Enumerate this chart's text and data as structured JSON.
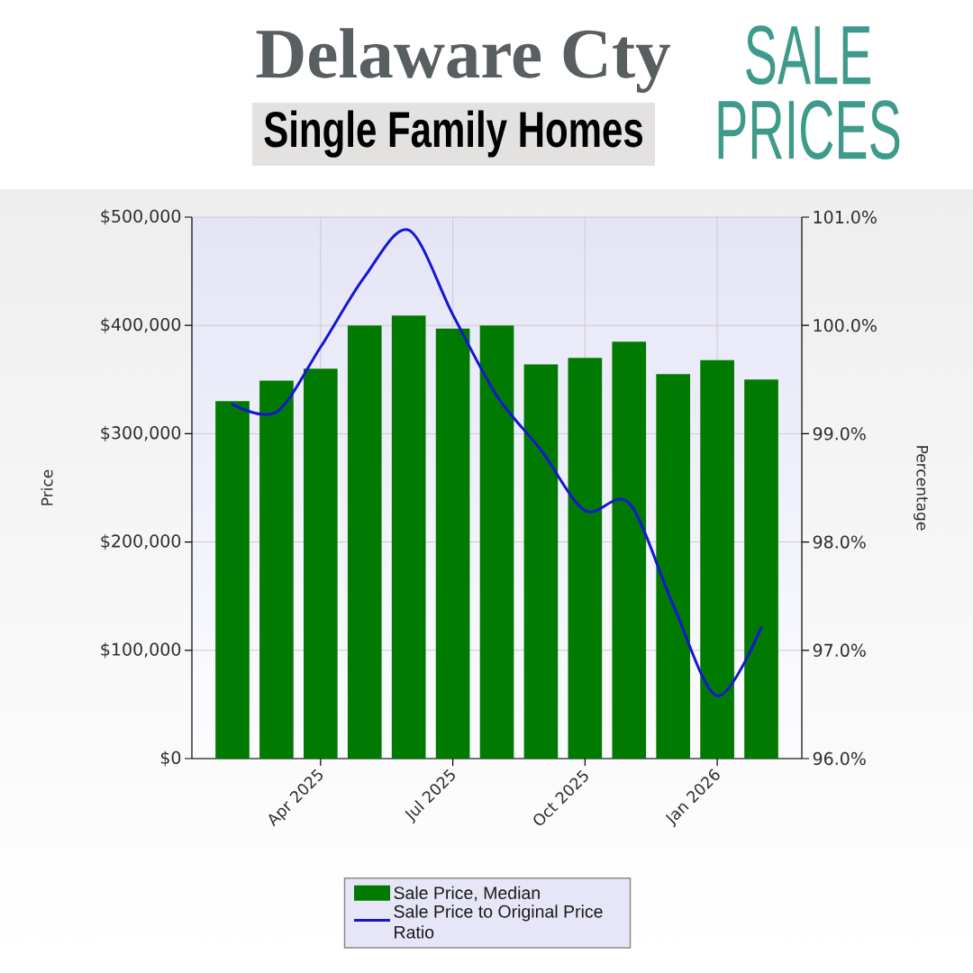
{
  "chart_data": {
    "type": "bar",
    "title": "Delaware Cty",
    "subtitle": "Single Family Homes",
    "annotations": [
      "SALE PRICES"
    ],
    "categories": [
      null,
      null,
      "Apr 2025",
      null,
      null,
      "Jul 2025",
      null,
      null,
      "Oct 2025",
      null,
      null,
      "Jan 2026",
      null
    ],
    "ylabel": "Price",
    "y2label": "Percentage",
    "ylim": [
      0,
      500000
    ],
    "yticks": [
      {
        "value": 0,
        "label": "$0"
      },
      {
        "value": 100000,
        "label": "$100,000"
      },
      {
        "value": 200000,
        "label": "$200,000"
      },
      {
        "value": 300000,
        "label": "$300,000"
      },
      {
        "value": 400000,
        "label": "$400,000"
      },
      {
        "value": 500000,
        "label": "$500,000"
      }
    ],
    "y2lim": [
      96,
      101
    ],
    "y2ticks": [
      {
        "value": 96,
        "label": "96.0%"
      },
      {
        "value": 97,
        "label": "97.0%"
      },
      {
        "value": 98,
        "label": "98.0%"
      },
      {
        "value": 99,
        "label": "99.0%"
      },
      {
        "value": 100,
        "label": "100.0%"
      },
      {
        "value": 101,
        "label": "101.0%"
      }
    ],
    "series": [
      {
        "name": "Sale Price, Median",
        "color": "#007a00",
        "values": [
          330000,
          349000,
          360000,
          400000,
          409000,
          397000,
          400000,
          364000,
          370000,
          385000,
          355000,
          368000,
          350000
        ]
      },
      {
        "name": "Sale Price to Original Price Ratio",
        "type": "line",
        "axis": "y2",
        "color": "#1515d5",
        "values": [
          99.27,
          99.2,
          99.8,
          100.45,
          100.88,
          100.1,
          99.35,
          98.85,
          98.29,
          98.36,
          97.42,
          96.58,
          97.21
        ]
      }
    ],
    "grid": true,
    "legend": "bottom"
  }
}
